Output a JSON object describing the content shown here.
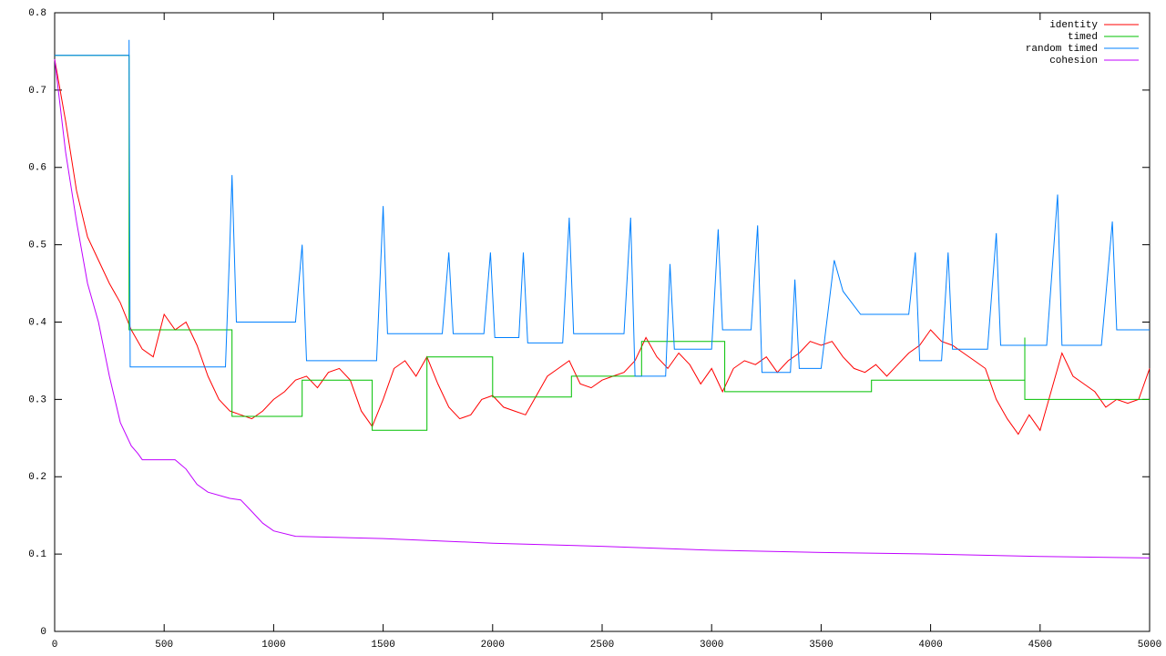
{
  "chart_data": {
    "type": "line",
    "xlim": [
      0,
      5000
    ],
    "xticks": [
      0,
      500,
      1000,
      1500,
      2000,
      2500,
      3000,
      3500,
      4000,
      4500,
      5000
    ],
    "ylim": [
      0,
      0.8
    ],
    "yticks": [
      0,
      0.1,
      0.2,
      0.3,
      0.4,
      0.5,
      0.6,
      0.7,
      0.8
    ],
    "grid": false,
    "legend": "top-right",
    "series": [
      {
        "name": "identity",
        "color": "#ff0000",
        "x": [
          0,
          50,
          100,
          150,
          200,
          250,
          300,
          350,
          400,
          450,
          500,
          550,
          600,
          650,
          700,
          750,
          800,
          850,
          900,
          950,
          1000,
          1050,
          1100,
          1150,
          1200,
          1250,
          1300,
          1350,
          1400,
          1450,
          1500,
          1550,
          1600,
          1650,
          1700,
          1750,
          1800,
          1850,
          1900,
          1950,
          2000,
          2050,
          2100,
          2150,
          2200,
          2250,
          2300,
          2350,
          2400,
          2450,
          2500,
          2550,
          2600,
          2650,
          2700,
          2750,
          2800,
          2850,
          2900,
          2950,
          3000,
          3050,
          3100,
          3150,
          3200,
          3250,
          3300,
          3350,
          3400,
          3450,
          3500,
          3550,
          3600,
          3650,
          3700,
          3750,
          3800,
          3850,
          3900,
          3950,
          4000,
          4050,
          4100,
          4150,
          4200,
          4250,
          4300,
          4350,
          4400,
          4450,
          4500,
          4550,
          4600,
          4650,
          4700,
          4750,
          4800,
          4850,
          4900,
          4950,
          5000
        ],
        "values": [
          0.74,
          0.66,
          0.57,
          0.51,
          0.48,
          0.45,
          0.425,
          0.39,
          0.365,
          0.355,
          0.41,
          0.39,
          0.4,
          0.37,
          0.33,
          0.3,
          0.285,
          0.28,
          0.275,
          0.285,
          0.3,
          0.31,
          0.325,
          0.33,
          0.315,
          0.335,
          0.34,
          0.325,
          0.285,
          0.265,
          0.3,
          0.34,
          0.35,
          0.33,
          0.355,
          0.32,
          0.29,
          0.275,
          0.28,
          0.3,
          0.305,
          0.29,
          0.285,
          0.28,
          0.305,
          0.33,
          0.34,
          0.35,
          0.32,
          0.315,
          0.325,
          0.33,
          0.335,
          0.35,
          0.38,
          0.355,
          0.34,
          0.36,
          0.345,
          0.32,
          0.34,
          0.31,
          0.34,
          0.35,
          0.345,
          0.355,
          0.335,
          0.35,
          0.36,
          0.375,
          0.37,
          0.375,
          0.355,
          0.34,
          0.335,
          0.345,
          0.33,
          0.345,
          0.36,
          0.37,
          0.39,
          0.375,
          0.37,
          0.36,
          0.35,
          0.34,
          0.3,
          0.275,
          0.255,
          0.28,
          0.26,
          0.31,
          0.36,
          0.33,
          0.32,
          0.31,
          0.29,
          0.3,
          0.295,
          0.3,
          0.34
        ]
      },
      {
        "name": "timed",
        "color": "#00c000",
        "x": [
          0,
          340,
          340,
          340,
          810,
          810,
          1130,
          1130,
          1450,
          1450,
          1700,
          1700,
          2000,
          2000,
          2360,
          2360,
          2680,
          2680,
          3060,
          3060,
          3730,
          3730,
          4430,
          4430,
          4430,
          5000
        ],
        "values": [
          0.745,
          0.745,
          0.625,
          0.39,
          0.39,
          0.278,
          0.278,
          0.325,
          0.325,
          0.26,
          0.26,
          0.355,
          0.355,
          0.303,
          0.303,
          0.33,
          0.33,
          0.375,
          0.375,
          0.31,
          0.31,
          0.325,
          0.325,
          0.38,
          0.3,
          0.3
        ]
      },
      {
        "name": "random timed",
        "color": "#0080ff",
        "x": [
          0,
          340,
          340,
          345,
          780,
          800,
          810,
          830,
          1100,
          1130,
          1150,
          1470,
          1500,
          1520,
          1770,
          1800,
          1820,
          1960,
          1990,
          2010,
          2120,
          2140,
          2160,
          2320,
          2350,
          2370,
          2600,
          2630,
          2650,
          2790,
          2810,
          2830,
          3000,
          3030,
          3050,
          3180,
          3210,
          3230,
          3360,
          3380,
          3400,
          3500,
          3560,
          3600,
          3680,
          3900,
          3930,
          3950,
          4050,
          4080,
          4100,
          4260,
          4300,
          4320,
          4530,
          4580,
          4600,
          4780,
          4830,
          4850,
          5000
        ],
        "values": [
          0.745,
          0.745,
          0.765,
          0.342,
          0.342,
          0.5,
          0.59,
          0.4,
          0.4,
          0.5,
          0.35,
          0.35,
          0.55,
          0.385,
          0.385,
          0.49,
          0.385,
          0.385,
          0.49,
          0.38,
          0.38,
          0.49,
          0.373,
          0.373,
          0.535,
          0.385,
          0.385,
          0.535,
          0.33,
          0.33,
          0.475,
          0.365,
          0.365,
          0.52,
          0.39,
          0.39,
          0.525,
          0.335,
          0.335,
          0.455,
          0.34,
          0.34,
          0.48,
          0.44,
          0.41,
          0.41,
          0.49,
          0.35,
          0.35,
          0.49,
          0.365,
          0.365,
          0.515,
          0.37,
          0.37,
          0.565,
          0.37,
          0.37,
          0.53,
          0.39,
          0.39
        ]
      },
      {
        "name": "cohesion",
        "color": "#c000ff",
        "x": [
          0,
          50,
          100,
          150,
          200,
          250,
          300,
          350,
          380,
          400,
          550,
          600,
          650,
          700,
          800,
          850,
          900,
          950,
          1000,
          1100,
          1500,
          2000,
          2500,
          3000,
          3500,
          4000,
          4500,
          5000
        ],
        "values": [
          0.74,
          0.62,
          0.53,
          0.45,
          0.4,
          0.33,
          0.27,
          0.24,
          0.23,
          0.222,
          0.222,
          0.21,
          0.19,
          0.18,
          0.172,
          0.17,
          0.155,
          0.14,
          0.13,
          0.123,
          0.12,
          0.114,
          0.11,
          0.105,
          0.102,
          0.1,
          0.097,
          0.095
        ]
      }
    ]
  }
}
